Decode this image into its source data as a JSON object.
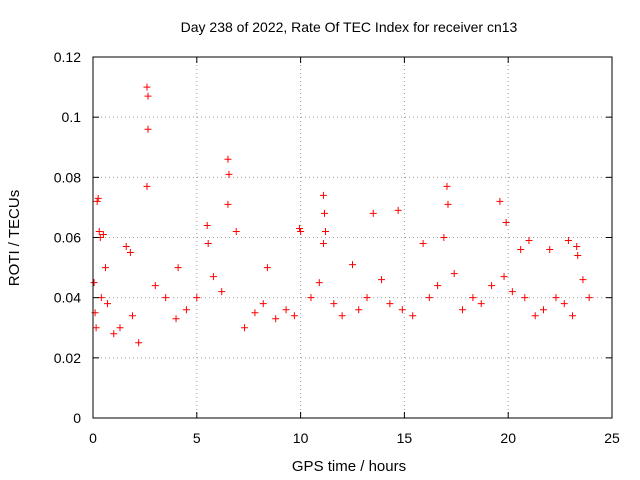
{
  "chart_data": {
    "type": "scatter",
    "title": "Day 238 of 2022, Rate Of TEC Index for receiver cn13",
    "xlabel": "GPS time / hours",
    "ylabel": "ROTI / TECUs",
    "xlim": [
      0,
      25
    ],
    "ylim": [
      0,
      0.12
    ],
    "xticks": [
      0,
      5,
      10,
      15,
      20,
      25
    ],
    "yticks": [
      0,
      0.02,
      0.04,
      0.06,
      0.08,
      0.1,
      0.12
    ],
    "xtick_labels": [
      "0",
      "5",
      "10",
      "15",
      "20",
      "25"
    ],
    "ytick_labels": [
      "0",
      "0.02",
      "0.04",
      "0.06",
      "0.08",
      "0.1",
      "0.12"
    ],
    "grid": true,
    "marker": "+",
    "series_color": "#ff0000",
    "series": [
      {
        "x": [
          0.2,
          0.25,
          0.3,
          0.35,
          0.5,
          0.6,
          2.6,
          2.65,
          2.65,
          2.6,
          6.5,
          6.55,
          6.5,
          11.1,
          11.15,
          11.2,
          13.5,
          14.7,
          17.05,
          17.1,
          19.6,
          19.9,
          9.95,
          10.0,
          11.1,
          5.5,
          5.55,
          6.9,
          15.9,
          22.9,
          23.3,
          23.35,
          1.6,
          1.8,
          4.1,
          8.4,
          12.5,
          16.9,
          20.6,
          21.0,
          22.0,
          0.05,
          0.1,
          0.15,
          0.4,
          0.7,
          1.0,
          1.3,
          1.9,
          2.2,
          3.0,
          3.5,
          4.0,
          4.5,
          5.0,
          5.8,
          6.2,
          7.3,
          7.8,
          8.2,
          8.8,
          9.3,
          9.7,
          10.5,
          10.9,
          11.6,
          12.0,
          12.8,
          13.2,
          13.9,
          14.3,
          14.9,
          15.4,
          16.2,
          16.6,
          17.4,
          17.8,
          18.3,
          18.7,
          19.2,
          19.8,
          20.2,
          20.8,
          21.3,
          21.7,
          22.3,
          22.7,
          23.1,
          23.6,
          23.9
        ],
        "y": [
          0.072,
          0.073,
          0.062,
          0.06,
          0.061,
          0.05,
          0.11,
          0.107,
          0.096,
          0.077,
          0.086,
          0.081,
          0.071,
          0.074,
          0.068,
          0.062,
          0.068,
          0.069,
          0.077,
          0.071,
          0.072,
          0.065,
          0.063,
          0.062,
          0.058,
          0.064,
          0.058,
          0.062,
          0.058,
          0.059,
          0.057,
          0.054,
          0.057,
          0.055,
          0.05,
          0.05,
          0.051,
          0.06,
          0.056,
          0.059,
          0.056,
          0.045,
          0.035,
          0.03,
          0.04,
          0.038,
          0.028,
          0.03,
          0.034,
          0.025,
          0.044,
          0.04,
          0.033,
          0.036,
          0.04,
          0.047,
          0.042,
          0.03,
          0.035,
          0.038,
          0.033,
          0.036,
          0.034,
          0.04,
          0.045,
          0.038,
          0.034,
          0.036,
          0.04,
          0.046,
          0.038,
          0.036,
          0.034,
          0.04,
          0.044,
          0.048,
          0.036,
          0.04,
          0.038,
          0.044,
          0.047,
          0.042,
          0.04,
          0.034,
          0.036,
          0.04,
          0.038,
          0.034,
          0.046,
          0.04
        ]
      }
    ]
  }
}
